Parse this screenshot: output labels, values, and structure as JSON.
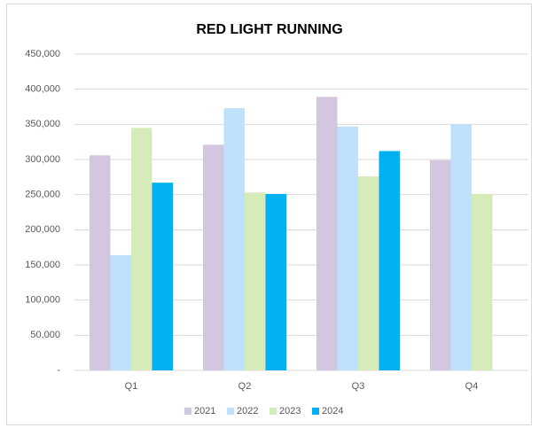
{
  "chart_data": {
    "type": "bar",
    "title": "RED LIGHT RUNNING",
    "categories": [
      "Q1",
      "Q2",
      "Q3",
      "Q4"
    ],
    "series": [
      {
        "name": "2021",
        "color": "#d3c6df",
        "values": [
          306000,
          321000,
          389000,
          299000
        ]
      },
      {
        "name": "2022",
        "color": "#bfe1fb",
        "values": [
          164000,
          373000,
          347000,
          350000
        ]
      },
      {
        "name": "2023",
        "color": "#d5ebba",
        "values": [
          345000,
          253000,
          276000,
          251000
        ]
      },
      {
        "name": "2024",
        "color": "#00b0f0",
        "values": [
          267000,
          251000,
          312000,
          null
        ]
      }
    ],
    "ylim": [
      0,
      450000
    ],
    "yticks": [
      {
        "value": 0,
        "label": "-"
      },
      {
        "value": 50000,
        "label": "50,000"
      },
      {
        "value": 100000,
        "label": "100,000"
      },
      {
        "value": 150000,
        "label": "150,000"
      },
      {
        "value": 200000,
        "label": "200,000"
      },
      {
        "value": 250000,
        "label": "250,000"
      },
      {
        "value": 300000,
        "label": "300,000"
      },
      {
        "value": 350000,
        "label": "350,000"
      },
      {
        "value": 400000,
        "label": "400,000"
      },
      {
        "value": 450000,
        "label": "450,000"
      }
    ],
    "grid": true,
    "legend": "bottom"
  }
}
